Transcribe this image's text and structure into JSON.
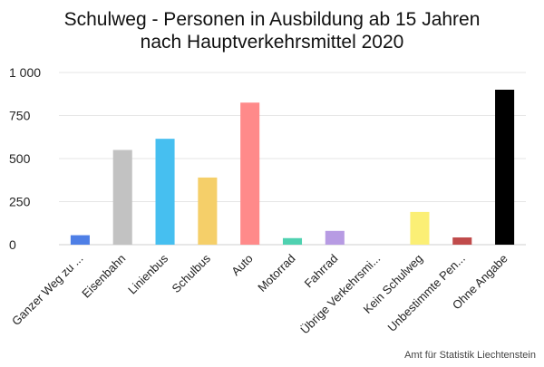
{
  "chart_data": {
    "type": "bar",
    "title_lines": [
      "Schulweg - Personen in Ausbildung ab 15 Jahren",
      "nach Hauptverkehrsmittel 2020"
    ],
    "xlabel": "",
    "ylabel": "",
    "ylim": [
      0,
      1000
    ],
    "yticks": [
      0,
      250,
      500,
      750,
      1000
    ],
    "ytick_labels": [
      "0",
      "250",
      "500",
      "750",
      "1 000"
    ],
    "grid": true,
    "legend": "none",
    "categories": [
      "Ganzer Weg zu ...",
      "Eisenbahn",
      "Linienbus",
      "Schulbus",
      "Auto",
      "Motorrad",
      "Fahrrad",
      "Übrige Verkehrsmi...",
      "Kein Schulweg",
      "Unbestimmte Pen...",
      "Ohne Angabe"
    ],
    "values": [
      55,
      550,
      615,
      390,
      825,
      38,
      80,
      0,
      190,
      42,
      900
    ],
    "colors": [
      "#4e7fe6",
      "#c2c2c2",
      "#46bff0",
      "#f5cf69",
      "#ff8a8a",
      "#4fd1b0",
      "#b79be3",
      "#dddddd",
      "#fbef75",
      "#c04b4b",
      "#000000"
    ]
  },
  "source": "Amt für Statistik Liechtenstein"
}
